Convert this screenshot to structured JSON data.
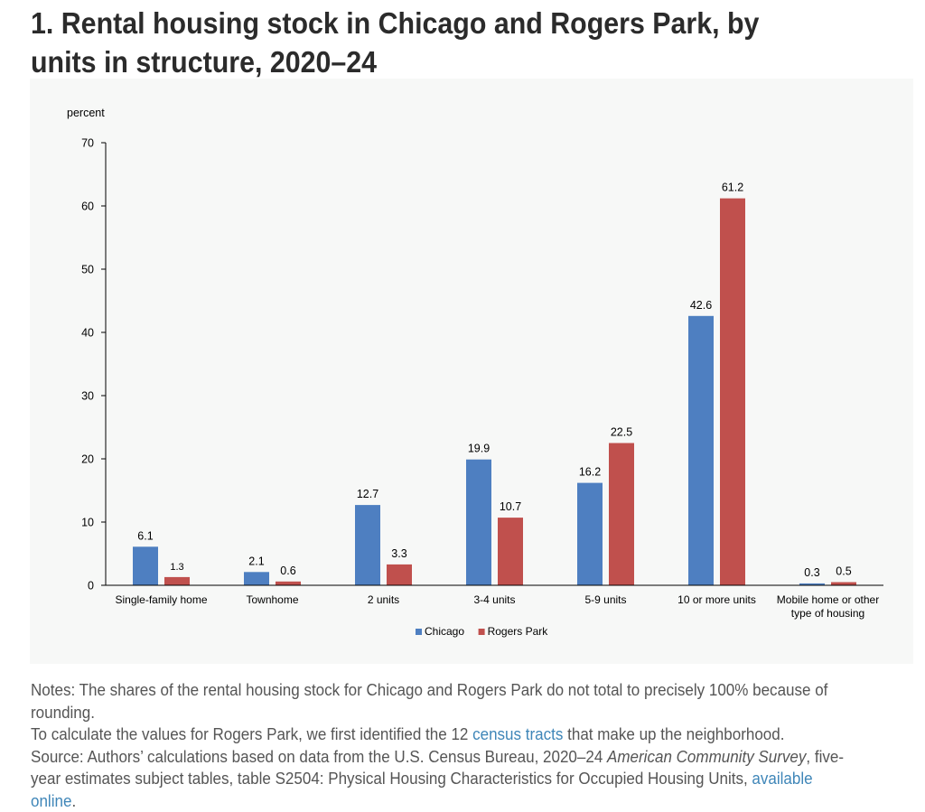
{
  "title": "1. Rental housing stock in Chicago and Rogers Park, by units in structure, 2020–24",
  "chart_data": {
    "type": "bar",
    "title": "",
    "ylabel": "percent",
    "xlabel": "",
    "ylim": [
      0,
      70
    ],
    "yticks": [
      0,
      10,
      20,
      30,
      40,
      50,
      60,
      70
    ],
    "categories": [
      "Single-family home",
      "Townhome",
      "2 units",
      "3-4 units",
      "5-9 units",
      "10 or more units",
      "Mobile home or other type of housing"
    ],
    "series": [
      {
        "name": "Chicago",
        "color": "#4e7fc1",
        "values": [
          6.1,
          2.1,
          12.7,
          19.9,
          16.2,
          42.6,
          0.3
        ]
      },
      {
        "name": "Rogers Park",
        "color": "#c0504d",
        "values": [
          1.3,
          0.6,
          3.3,
          10.7,
          22.5,
          61.2,
          0.5
        ]
      }
    ],
    "data_labels": [
      [
        "6.1",
        "2.1",
        "12.7",
        "19.9",
        "16.2",
        "42.6",
        "0.3"
      ],
      [
        "1.3",
        "0.6",
        "3.3",
        "10.7",
        "22.5",
        "61.2",
        "0.5"
      ]
    ],
    "legend": "bottom-center",
    "grid": false
  },
  "notes": {
    "line1": "Notes: The shares of the rental housing stock for Chicago and Rogers Park do not total to precisely 100% because of rounding.",
    "line2_before": "To calculate the values for Rogers Park, we first identified the 12 ",
    "line2_link": "census tracts",
    "line2_after": " that make up the neighborhood.",
    "source_before": "Source: Authors’ calculations based on data from the U.S. Census Bureau, 2020–24 ",
    "source_italic": "American Community Survey",
    "source_after": ", five-year estimates subject tables, table S2504: Physical Housing Characteristics for Occupied Housing Units, ",
    "source_link": "available online",
    "source_end": "."
  }
}
